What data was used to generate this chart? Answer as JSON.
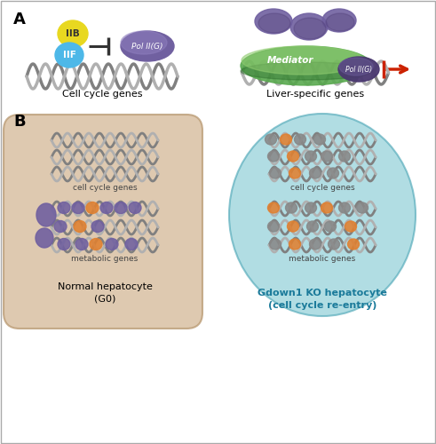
{
  "panel_bg": "#ffffff",
  "label_A": "A",
  "label_B": "B",
  "text_cell_cycle": "Cell cycle genes",
  "text_liver": "Liver-specific genes",
  "text_normal": "Normal hepatocyte\n(G0)",
  "text_ko": "Gdown1 KO hepatocyte\n(cell cycle re-entry)",
  "text_IIB": "IIB",
  "text_IIF": "IIF",
  "text_pol_g": "Pol II(G)",
  "text_mediator": "Mediator",
  "text_cell_cycle_genes": "cell cycle genes",
  "text_metabolic_genes": "metabolic genes",
  "color_yellow": "#e8d820",
  "color_blue": "#4db8e8",
  "color_purple": "#7060a0",
  "color_purple_dark": "#4a3870",
  "color_green_med": "#5aaa50",
  "color_green_light": "#90cc70",
  "color_red": "#cc2200",
  "color_beige": "#d4b896",
  "color_teal": "#88ccd4",
  "color_gray": "#888888",
  "color_orange": "#e08030",
  "color_dna1": "#808080",
  "color_dna2": "#b0b0b0"
}
